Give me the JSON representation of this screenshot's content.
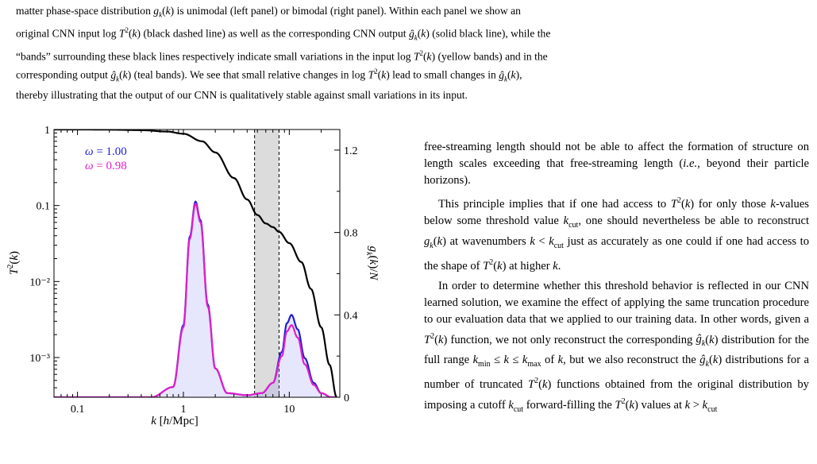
{
  "caption": {
    "line1": "matter phase-space distribution g_k(k) is unimodal (left panel) or bimodal (right panel). Within each panel we show an",
    "line2": "original CNN input log T²(k) (black dashed line) as well as the corresponding CNN output ĝ_k(k) (solid black line), while the",
    "line3": "“bands” surrounding these black lines respectively indicate small variations in the input log T²(k) (yellow bands) and in the",
    "line4": "corresponding output ĝ_k(k) (teal bands). We see that small relative changes in log T²(k) lead to small changes in ĝ_k(k),",
    "line5": "thereby illustrating that the output of our CNN is qualitatively stable against small variations in its input."
  },
  "body": {
    "p1": "free-streaming length should not be able to affect the formation of structure on length scales exceeding that free-streaming length (i.e., beyond their particle horizons).",
    "p2": "This principle implies that if one had access to T²(k) for only those k-values below some threshold value k_cut, one should nevertheless be able to reconstruct g_k(k) at wavenumbers k < k_cut just as accurately as one could if one had access to the shape of T²(k) at higher k.",
    "p3": "In order to determine whether this threshold behavior is reflected in our CNN learned solution, we examine the effect of applying the same truncation procedure to our evaluation data that we applied to our training data. In other words, given a T²(k) function, we not only reconstruct the corresponding ĝ_k(k) distribution for the full range k_min ≤ k ≤ k_max of k, but we also reconstruct the ĝ_k(k) distributions for a number of truncated T²(k) functions obtained from the original distribution by imposing a cutoff k_cut forward-filling the T²(k) values at k > k_cut"
  },
  "chart_data": {
    "type": "line",
    "xlabel": "k [h/Mpc]",
    "ylabel_left": "T²(k)",
    "ylabel_right": "g_k(k)/N",
    "x_scale": "log",
    "xlim": [
      0.06,
      30
    ],
    "y_left_scale": "log",
    "y_left_lim": [
      0.0003,
      1
    ],
    "y_right_lim": [
      0,
      1.3
    ],
    "x_ticks": [
      "0.1",
      "1",
      "10"
    ],
    "y_left_ticks": [
      "1",
      "0.1",
      "10⁻²",
      "10⁻³"
    ],
    "y_right_ticks": [
      "0",
      "0.4",
      "0.8",
      "1.2"
    ],
    "shaded_band_k": [
      4.7,
      8.0
    ],
    "legend": [
      {
        "label": "ω = 1.00",
        "color": "#1f1fd6"
      },
      {
        "label": "ω = 0.98",
        "color": "#e020c8"
      }
    ],
    "transfer_curve": {
      "color": "#000000",
      "k": [
        0.06,
        0.1,
        0.2,
        0.4,
        0.7,
        1.0,
        1.5,
        2.0,
        3.0,
        4.0,
        5.0,
        6.0,
        7.0,
        8.0,
        10.0,
        13.0,
        16.0,
        20.0,
        24.0,
        28.0
      ],
      "T2": [
        1.0,
        1.0,
        0.995,
        0.98,
        0.94,
        0.88,
        0.7,
        0.5,
        0.23,
        0.12,
        0.075,
        0.058,
        0.052,
        0.045,
        0.032,
        0.018,
        0.008,
        0.0025,
        0.0008,
        0.0003
      ]
    },
    "series": [
      {
        "name": "ω = 1.00",
        "color": "#1f1fd6",
        "k": [
          0.06,
          0.5,
          0.8,
          1.0,
          1.15,
          1.3,
          1.45,
          1.7,
          2.0,
          2.6,
          4.0,
          5.5,
          7.0,
          8.5,
          9.5,
          10.5,
          12.0,
          14.0,
          17.0,
          20.0,
          25.0,
          28.0
        ],
        "g": [
          0.0,
          0.0,
          0.05,
          0.35,
          0.78,
          0.95,
          0.86,
          0.45,
          0.14,
          0.02,
          0.01,
          0.02,
          0.07,
          0.22,
          0.36,
          0.4,
          0.33,
          0.19,
          0.07,
          0.02,
          0.0,
          0.0
        ]
      },
      {
        "name": "ω = 0.98",
        "color": "#e020c8",
        "k": [
          0.06,
          0.5,
          0.8,
          1.0,
          1.15,
          1.3,
          1.45,
          1.7,
          2.0,
          2.6,
          4.0,
          5.5,
          7.0,
          8.5,
          9.5,
          10.5,
          12.0,
          14.0,
          17.0,
          20.0,
          25.0,
          28.0
        ],
        "g": [
          0.0,
          0.0,
          0.05,
          0.34,
          0.77,
          0.94,
          0.85,
          0.44,
          0.14,
          0.02,
          0.01,
          0.02,
          0.07,
          0.2,
          0.32,
          0.35,
          0.29,
          0.16,
          0.06,
          0.02,
          0.0,
          0.0
        ]
      }
    ]
  }
}
